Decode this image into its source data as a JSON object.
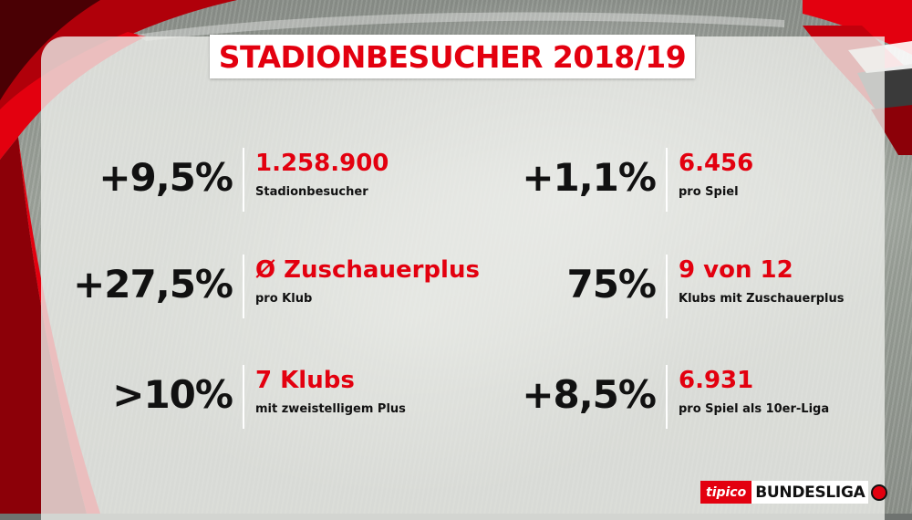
{
  "title": "STADIONBESUCHER 2018/19",
  "stats": [
    {
      "pct": "+9,5%",
      "main": "1.258.900",
      "sub": "Stadionbesucher"
    },
    {
      "pct": "+1,1%",
      "main": "6.456",
      "sub": "pro Spiel"
    },
    {
      "pct": "+27,5%",
      "main": "Ø Zuschauerplus",
      "sub": "pro Klub"
    },
    {
      "pct": "75%",
      "main": "9 von 12",
      "sub": "Klubs mit Zuschauerplus"
    },
    {
      "pct": ">10%",
      "main": "7 Klubs",
      "sub": "mit zweistelligem Plus"
    },
    {
      "pct": "+8,5%",
      "main": "6.931",
      "sub": "pro Spiel als 10er-Liga"
    }
  ],
  "logo": {
    "sponsor": "tipico",
    "league": "BUNDESLIGA"
  },
  "colors": {
    "accent": "#e3000f",
    "text": "#111111",
    "panel": "#eceeea"
  }
}
